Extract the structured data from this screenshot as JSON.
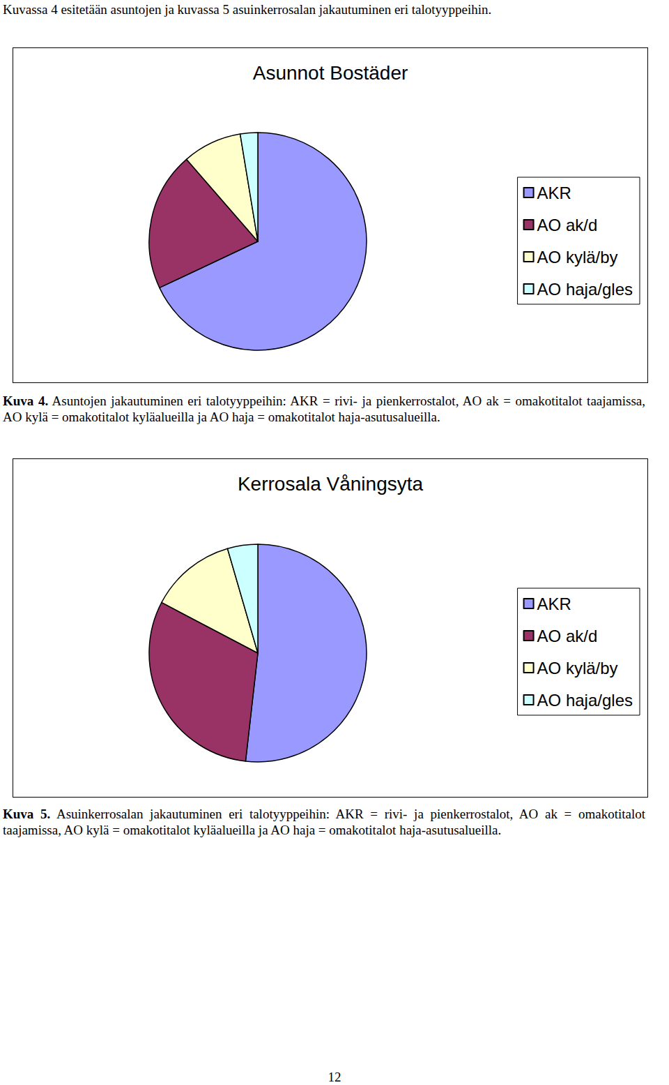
{
  "document": {
    "intro": "Kuvassa 4 esitetään asuntojen ja kuvassa 5 asuinkerrosalan jakautuminen eri talotyyppeihin.",
    "figures": [
      {
        "label": "Kuva 4.",
        "caption": "Asuntojen jakautuminen eri talotyyppeihin: AKR = rivi- ja pienkerrostalot, AO ak = omakotitalot taajamissa, AO kylä = omakotitalot kyläalueilla ja AO haja = omakotitalot haja-asutusalueilla."
      },
      {
        "label": "Kuva 5.",
        "caption": "Asuinkerrosalan jakautuminen eri talotyyppeihin: AKR = rivi- ja pienkerrostalot, AO ak = omakotitalot taajamissa, AO kylä = omakotitalot kyläalueilla ja AO haja = omakotitalot haja-asutusalueilla."
      }
    ],
    "page_number": 12
  },
  "chart_data": [
    {
      "type": "pie",
      "title": "Asunnot Bostäder",
      "categories": [
        "AKR",
        "AO ak/d",
        "AO kylä/by",
        "AO haja/gles"
      ],
      "values": [
        68,
        20.6,
        8.8,
        2.6
      ],
      "colors": [
        "#9999ff",
        "#993366",
        "#ffffcc",
        "#ccffff"
      ],
      "legend": "right"
    },
    {
      "type": "pie",
      "title": "Kerrosala Våningsyta",
      "categories": [
        "AKR",
        "AO ak/d",
        "AO kylä/by",
        "AO haja/gles"
      ],
      "values": [
        51.8,
        30.9,
        12.8,
        4.5
      ],
      "colors": [
        "#9999ff",
        "#993366",
        "#ffffcc",
        "#ccffff"
      ],
      "legend": "right"
    }
  ]
}
